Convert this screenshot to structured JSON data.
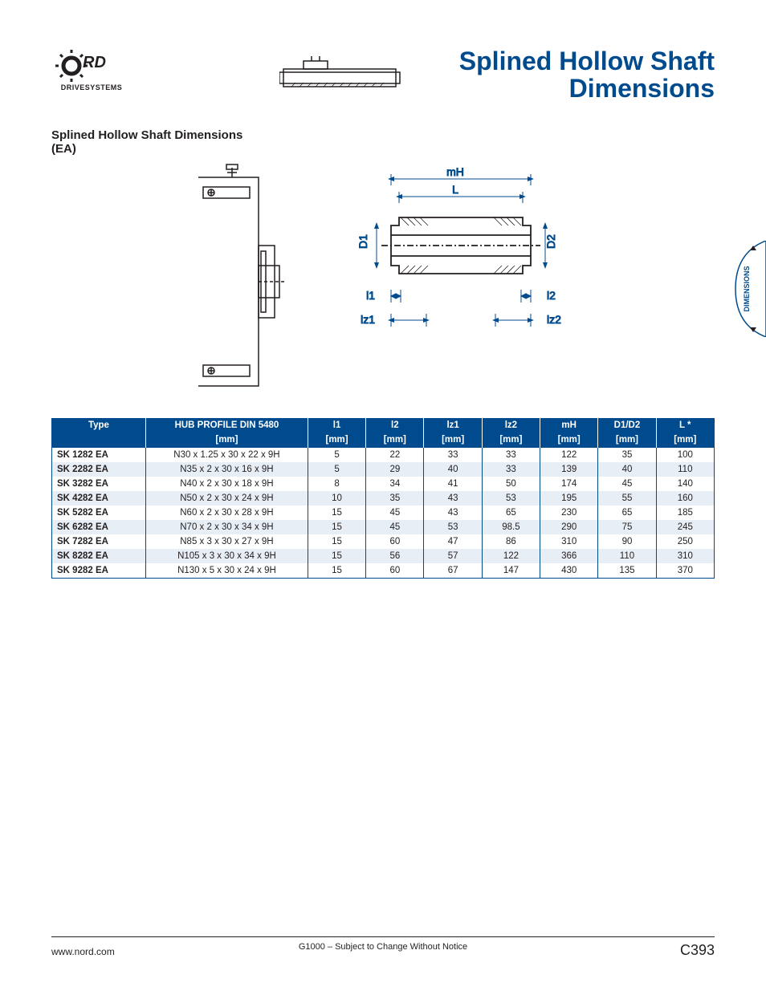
{
  "brand": {
    "name": "NORD",
    "sub": "DRIVESYSTEMS"
  },
  "title": {
    "line1": "Splined Hollow Shaft",
    "line2": "Dimensions"
  },
  "section_heading": {
    "line1": "Splined Hollow Shaft Dimensions",
    "line2": "(EA)"
  },
  "side_tab": "DIMENSIONS",
  "diagram_labels": {
    "mH": "mH",
    "L": "L",
    "D1": "D1",
    "D2": "D2",
    "l1": "l1",
    "l2": "l2",
    "lz1": "lz1",
    "lz2": "lz2"
  },
  "table": {
    "header_bg": "#004b8d",
    "header_fg": "#ffffff",
    "row_alt_bg": "#e8eef6",
    "border_color": "#004b8d",
    "columns": [
      {
        "title": "Type",
        "unit": ""
      },
      {
        "title": "HUB PROFILE DIN 5480",
        "unit": "[mm]"
      },
      {
        "title": "l1",
        "unit": "[mm]"
      },
      {
        "title": "l2",
        "unit": "[mm]"
      },
      {
        "title": "lz1",
        "unit": "[mm]"
      },
      {
        "title": "lz2",
        "unit": "[mm]"
      },
      {
        "title": "mH",
        "unit": "[mm]"
      },
      {
        "title": "D1/D2",
        "unit": "[mm]"
      },
      {
        "title": "L *",
        "unit": "[mm]"
      }
    ],
    "rows": [
      [
        "SK 1282 EA",
        "N30 x 1.25 x 30 x 22 x 9H",
        "5",
        "22",
        "33",
        "33",
        "122",
        "35",
        "100"
      ],
      [
        "SK 2282 EA",
        "N35 x 2 x 30 x 16 x 9H",
        "5",
        "29",
        "40",
        "33",
        "139",
        "40",
        "110"
      ],
      [
        "SK 3282 EA",
        "N40 x 2 x 30 x 18 x 9H",
        "8",
        "34",
        "41",
        "50",
        "174",
        "45",
        "140"
      ],
      [
        "SK 4282 EA",
        "N50 x 2 x 30 x 24 x 9H",
        "10",
        "35",
        "43",
        "53",
        "195",
        "55",
        "160"
      ],
      [
        "SK 5282 EA",
        "N60 x 2 x 30 x 28 x 9H",
        "15",
        "45",
        "43",
        "65",
        "230",
        "65",
        "185"
      ],
      [
        "SK 6282 EA",
        "N70 x 2 x 30 x 34 x 9H",
        "15",
        "45",
        "53",
        "98.5",
        "290",
        "75",
        "245"
      ],
      [
        "SK 7282 EA",
        "N85 x 3 x 30 x 27 x 9H",
        "15",
        "60",
        "47",
        "86",
        "310",
        "90",
        "250"
      ],
      [
        "SK 8282 EA",
        "N105 x 3 x 30 x 34 x 9H",
        "15",
        "56",
        "57",
        "122",
        "366",
        "110",
        "310"
      ],
      [
        "SK 9282 EA",
        "N130 x 5 x 30 x 24 x 9H",
        "15",
        "60",
        "67",
        "147",
        "430",
        "135",
        "370"
      ]
    ]
  },
  "footer": {
    "left": "www.nord.com",
    "center": "G1000 – Subject to Change Without Notice",
    "right": "C393"
  }
}
